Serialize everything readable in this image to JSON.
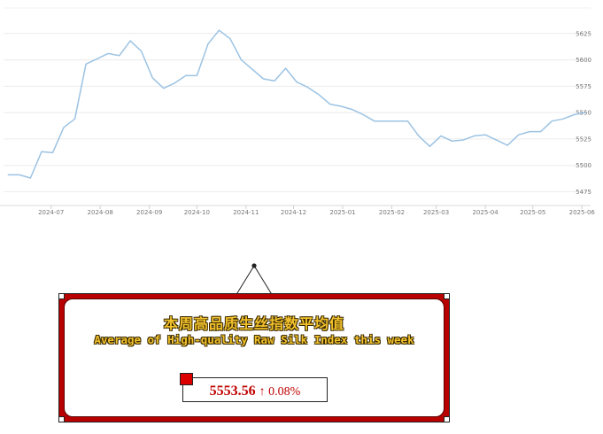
{
  "chart_data": {
    "type": "line",
    "title": "",
    "xlabel": "",
    "ylabel": "",
    "ylim": [
      5462,
      5650
    ],
    "grid": true,
    "x_ticks": [
      "2024-07",
      "2024-08",
      "2024-09",
      "2024-10",
      "2024-11",
      "2024-12",
      "2025-01",
      "2025-02",
      "2025-03",
      "2025-04",
      "2025-05",
      "2025-06"
    ],
    "y_ticks": [
      5475,
      5500,
      5525,
      5550,
      5575,
      5600,
      5625
    ],
    "series": [
      {
        "color": "#9cc3e3",
        "points": [
          [
            "2024-06-04",
            5491
          ],
          [
            "2024-06-11",
            5491
          ],
          [
            "2024-06-18",
            5488
          ],
          [
            "2024-06-25",
            5513
          ],
          [
            "2024-07-02",
            5512
          ],
          [
            "2024-07-09",
            5536
          ],
          [
            "2024-07-16",
            5544
          ],
          [
            "2024-07-23",
            5596
          ],
          [
            "2024-07-30",
            5601
          ],
          [
            "2024-08-06",
            5606
          ],
          [
            "2024-08-13",
            5604
          ],
          [
            "2024-08-20",
            5618
          ],
          [
            "2024-08-27",
            5608
          ],
          [
            "2024-09-03",
            5583
          ],
          [
            "2024-09-10",
            5573
          ],
          [
            "2024-09-17",
            5578
          ],
          [
            "2024-09-24",
            5585
          ],
          [
            "2024-10-01",
            5585
          ],
          [
            "2024-10-08",
            5615
          ],
          [
            "2024-10-15",
            5628
          ],
          [
            "2024-10-22",
            5620
          ],
          [
            "2024-10-29",
            5600
          ],
          [
            "2024-11-05",
            5591
          ],
          [
            "2024-11-12",
            5582
          ],
          [
            "2024-11-19",
            5580
          ],
          [
            "2024-11-26",
            5592
          ],
          [
            "2024-12-03",
            5579
          ],
          [
            "2024-12-10",
            5574
          ],
          [
            "2024-12-17",
            5567
          ],
          [
            "2024-12-24",
            5558
          ],
          [
            "2024-12-31",
            5556
          ],
          [
            "2025-01-07",
            5553
          ],
          [
            "2025-01-14",
            5548
          ],
          [
            "2025-01-21",
            5542
          ],
          [
            "2025-01-28",
            5542
          ],
          [
            "2025-02-04",
            5542
          ],
          [
            "2025-02-11",
            5542
          ],
          [
            "2025-02-18",
            5528
          ],
          [
            "2025-02-25",
            5518
          ],
          [
            "2025-03-04",
            5528
          ],
          [
            "2025-03-11",
            5523
          ],
          [
            "2025-03-18",
            5524
          ],
          [
            "2025-03-25",
            5528
          ],
          [
            "2025-04-01",
            5529
          ],
          [
            "2025-04-08",
            5524
          ],
          [
            "2025-04-15",
            5519
          ],
          [
            "2025-04-22",
            5529
          ],
          [
            "2025-04-29",
            5532
          ],
          [
            "2025-05-06",
            5532
          ],
          [
            "2025-05-13",
            5542
          ],
          [
            "2025-05-20",
            5544
          ],
          [
            "2025-05-27",
            5548
          ],
          [
            "2025-06-03",
            5550
          ]
        ]
      }
    ]
  },
  "panel": {
    "title_cn": "本周高品质生丝指数平均值",
    "title_en": "Average of High-quality Raw Silk Index this week",
    "value": "5553.56",
    "change": "↑ 0.08%",
    "accent_color": "#c00000",
    "frame_color": "#b80000",
    "title_color": "#f3c22c"
  }
}
